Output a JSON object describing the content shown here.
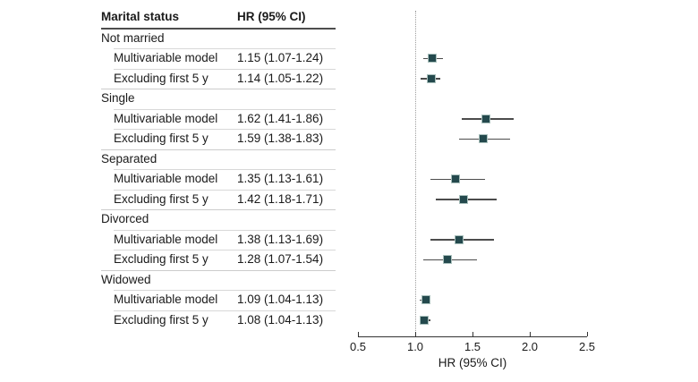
{
  "table": {
    "col1_header": "Marital status",
    "col2_header": "HR (95% CI)"
  },
  "chart_data": {
    "type": "scatter",
    "subtype": "forest-plot",
    "xlabel": "HR (95% CI)",
    "xlim": [
      0.5,
      2.5
    ],
    "xticks": [
      0.5,
      1.0,
      1.5,
      2.0,
      2.5
    ],
    "xtick_labels": [
      "0.5",
      "1.0",
      "1.5",
      "2.0",
      "2.5"
    ],
    "reference_line": 1.0,
    "grid": false,
    "legend": false,
    "marker_color": "#24494d",
    "marker_border_color": "#a9c0bc",
    "ci_line_color": "#4c4c4c",
    "groups": [
      {
        "label": "Not married",
        "rows": [
          {
            "label": "Multivariable model",
            "hr": 1.15,
            "ci_low": 1.07,
            "ci_high": 1.24,
            "text": "1.15 (1.07-1.24)"
          },
          {
            "label": "Excluding first 5 y",
            "hr": 1.14,
            "ci_low": 1.05,
            "ci_high": 1.22,
            "text": "1.14 (1.05-1.22)"
          }
        ]
      },
      {
        "label": "Single",
        "rows": [
          {
            "label": "Multivariable model",
            "hr": 1.62,
            "ci_low": 1.41,
            "ci_high": 1.86,
            "text": "1.62 (1.41-1.86)"
          },
          {
            "label": "Excluding first 5 y",
            "hr": 1.59,
            "ci_low": 1.38,
            "ci_high": 1.83,
            "text": "1.59 (1.38-1.83)"
          }
        ]
      },
      {
        "label": "Separated",
        "rows": [
          {
            "label": "Multivariable model",
            "hr": 1.35,
            "ci_low": 1.13,
            "ci_high": 1.61,
            "text": "1.35 (1.13-1.61)"
          },
          {
            "label": "Excluding first 5 y",
            "hr": 1.42,
            "ci_low": 1.18,
            "ci_high": 1.71,
            "text": "1.42 (1.18-1.71)"
          }
        ]
      },
      {
        "label": "Divorced",
        "rows": [
          {
            "label": "Multivariable model",
            "hr": 1.38,
            "ci_low": 1.13,
            "ci_high": 1.69,
            "text": "1.38 (1.13-1.69)"
          },
          {
            "label": "Excluding first 5 y",
            "hr": 1.28,
            "ci_low": 1.07,
            "ci_high": 1.54,
            "text": "1.28 (1.07-1.54)"
          }
        ]
      },
      {
        "label": "Widowed",
        "rows": [
          {
            "label": "Multivariable model",
            "hr": 1.09,
            "ci_low": 1.04,
            "ci_high": 1.13,
            "text": "1.09 (1.04-1.13)"
          },
          {
            "label": "Excluding first 5 y",
            "hr": 1.08,
            "ci_low": 1.04,
            "ci_high": 1.13,
            "text": "1.08 (1.04-1.13)"
          }
        ]
      }
    ]
  }
}
